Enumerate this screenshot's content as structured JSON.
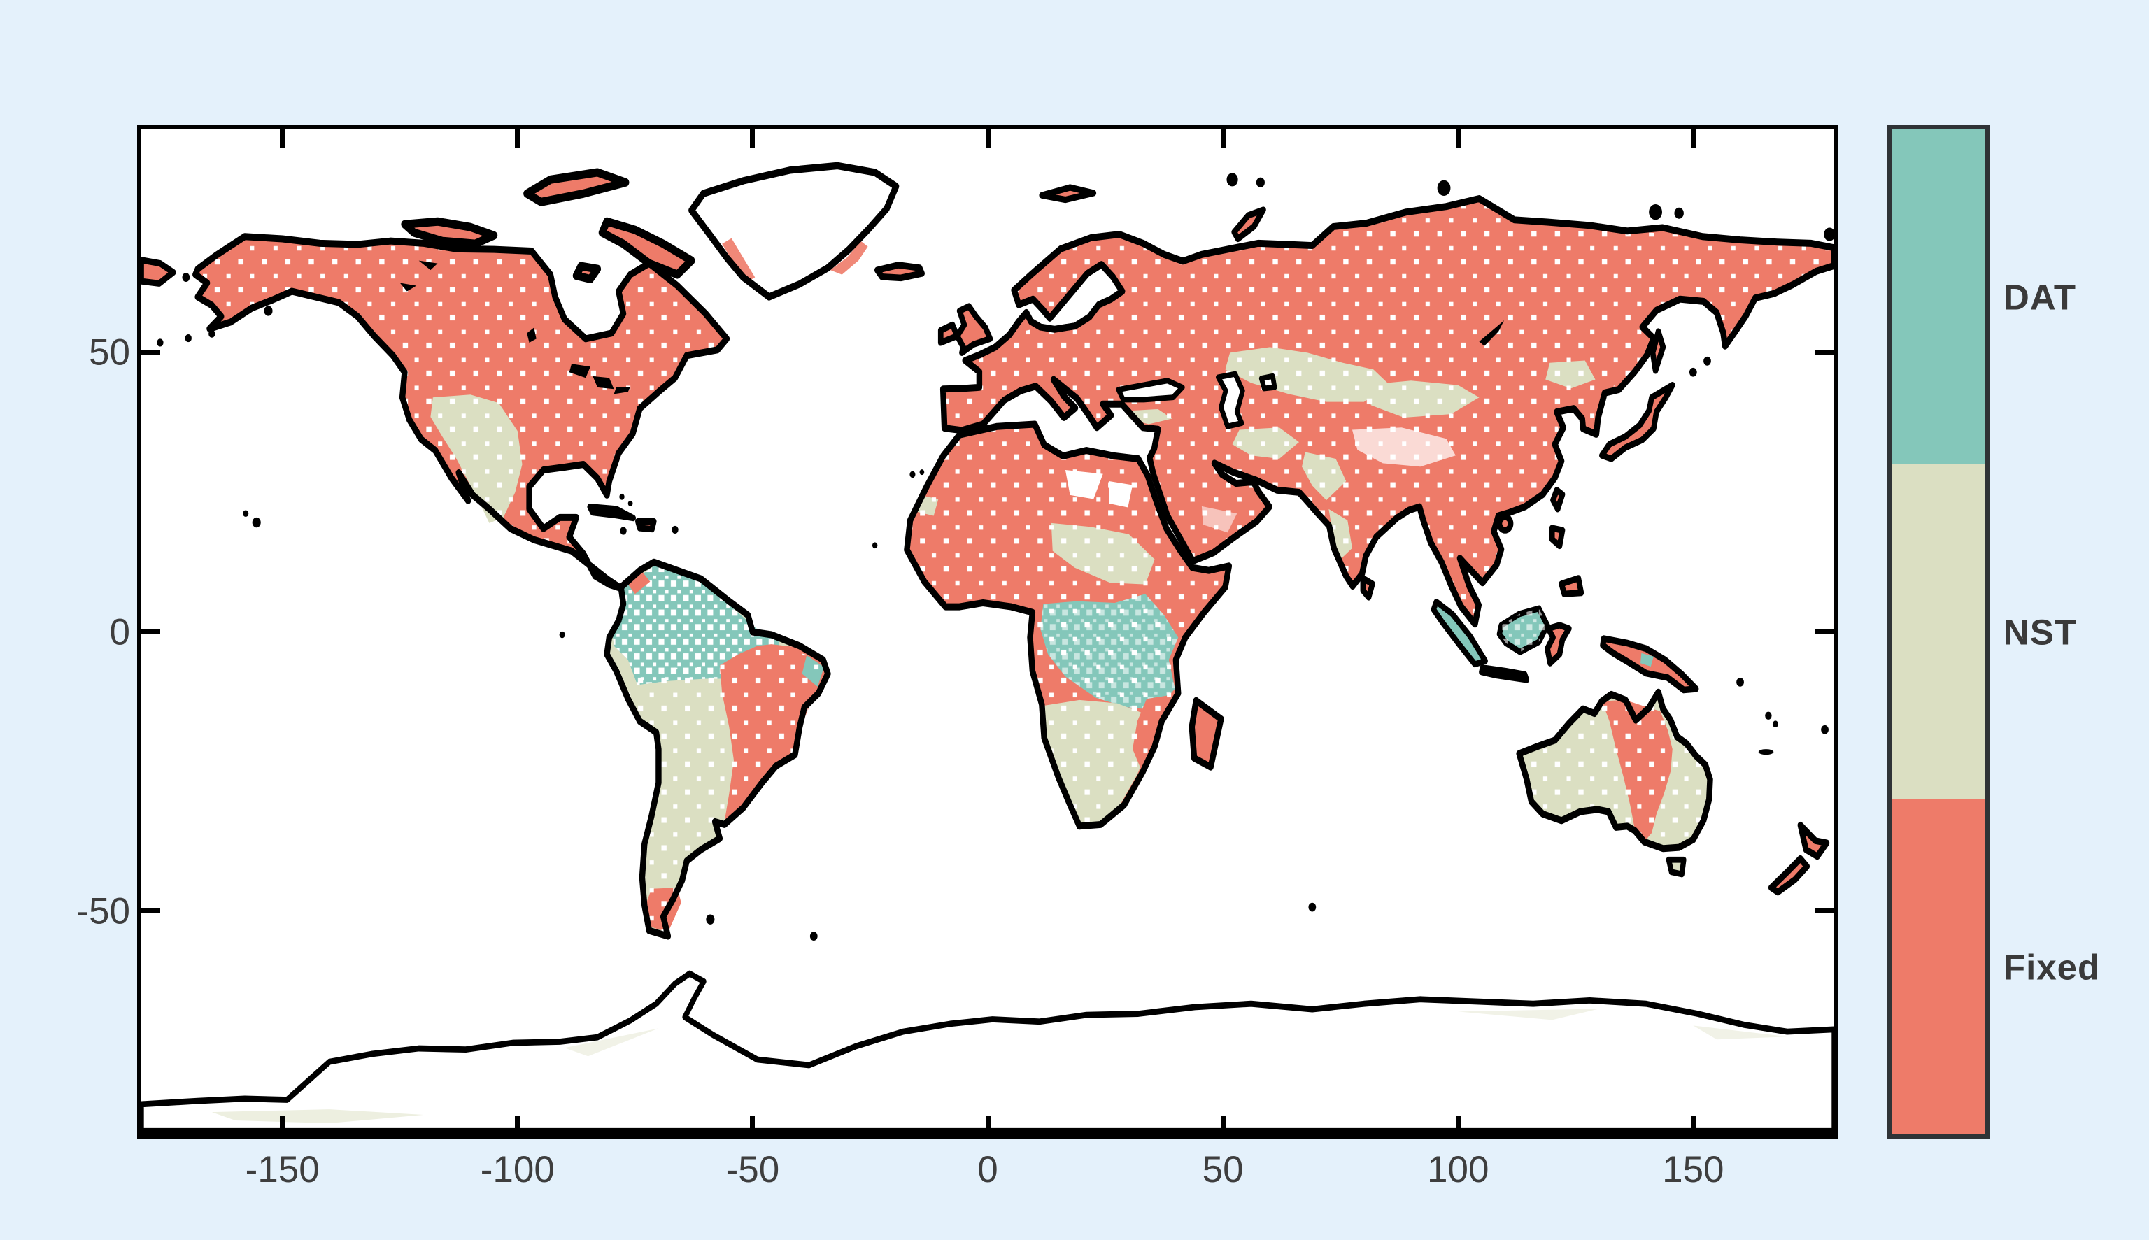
{
  "figure": {
    "background_color": "#e4f1fb",
    "plot_background": "#ffffff",
    "plot_border_color": "#000000",
    "tick_color": "#000000",
    "tick_label_color": "#3e3e3e",
    "colorbar_border_color": "#2f3336",
    "legend_label_color": "#3a3a3a"
  },
  "chart_data": {
    "type": "heatmap",
    "subtype": "categorical-world-map",
    "title": "",
    "xlabel": "",
    "ylabel": "",
    "xlim": [
      -180,
      180
    ],
    "ylim": [
      -90,
      90
    ],
    "grid": false,
    "x_ticks": [
      -150,
      -100,
      -50,
      0,
      50,
      100,
      150
    ],
    "x_tick_labels": [
      "-150",
      "-100",
      "-50",
      "0",
      "50",
      "100",
      "150"
    ],
    "y_ticks": [
      50,
      0,
      -50
    ],
    "y_tick_labels": [
      "50",
      "0",
      "-50"
    ],
    "ocean_color": "#ffffff",
    "coastline_color": "#000000",
    "legend": {
      "position": "right-colorbar",
      "order_top_to_bottom": [
        "DAT",
        "NST",
        "Fixed"
      ],
      "entries": [
        {
          "label": "DAT",
          "color": "#84c7ba"
        },
        {
          "label": "NST",
          "color": "#dbdfc2"
        },
        {
          "label": "Fixed",
          "color": "#ee7b69"
        }
      ]
    },
    "regions": [
      {
        "region": "Alaska, Canada, eastern USA",
        "category": "Fixed"
      },
      {
        "region": "Western USA and northern Mexico",
        "category": "NST"
      },
      {
        "region": "Greenland interior",
        "category": "no data"
      },
      {
        "region": "NW Amazon basin (Colombia, Venezuela, N Brazil)",
        "category": "DAT (sparse)"
      },
      {
        "region": "Peru, Bolivia, Chile, Argentina, Paraguay",
        "category": "NST"
      },
      {
        "region": "Eastern Brazil",
        "category": "Fixed"
      },
      {
        "region": "NE Brazil tip",
        "category": "DAT"
      },
      {
        "region": "Southern Patagonia",
        "category": "Fixed"
      },
      {
        "region": "Europe",
        "category": "Fixed"
      },
      {
        "region": "Sahara, Sahel, Horn of Africa",
        "category": "Fixed"
      },
      {
        "region": "Sudan-Chad belt",
        "category": "NST"
      },
      {
        "region": "Congo basin and East Africa",
        "category": "DAT"
      },
      {
        "region": "Southern Africa",
        "category": "NST"
      },
      {
        "region": "Mozambique coast",
        "category": "Fixed"
      },
      {
        "region": "Madagascar",
        "category": "Fixed"
      },
      {
        "region": "Middle East and Arabia",
        "category": "Fixed"
      },
      {
        "region": "Kazakhstan / Central Asia patches",
        "category": "NST"
      },
      {
        "region": "Iran-Afghanistan-Pakistan-W India patches",
        "category": "NST"
      },
      {
        "region": "NE China patch",
        "category": "NST"
      },
      {
        "region": "Russia, Siberia, China, India, SE Asia",
        "category": "Fixed"
      },
      {
        "region": "Tibetan plateau",
        "category": "sparse / no data"
      },
      {
        "region": "Sumatra, Borneo, Java",
        "category": "DAT"
      },
      {
        "region": "New Guinea",
        "category": "Fixed with DAT patch"
      },
      {
        "region": "Australia east and west",
        "category": "NST"
      },
      {
        "region": "Australia central-north band",
        "category": "Fixed"
      },
      {
        "region": "New Zealand",
        "category": "Fixed"
      },
      {
        "region": "Antarctica",
        "category": "no data, sparse NST speckle near coast"
      }
    ]
  }
}
